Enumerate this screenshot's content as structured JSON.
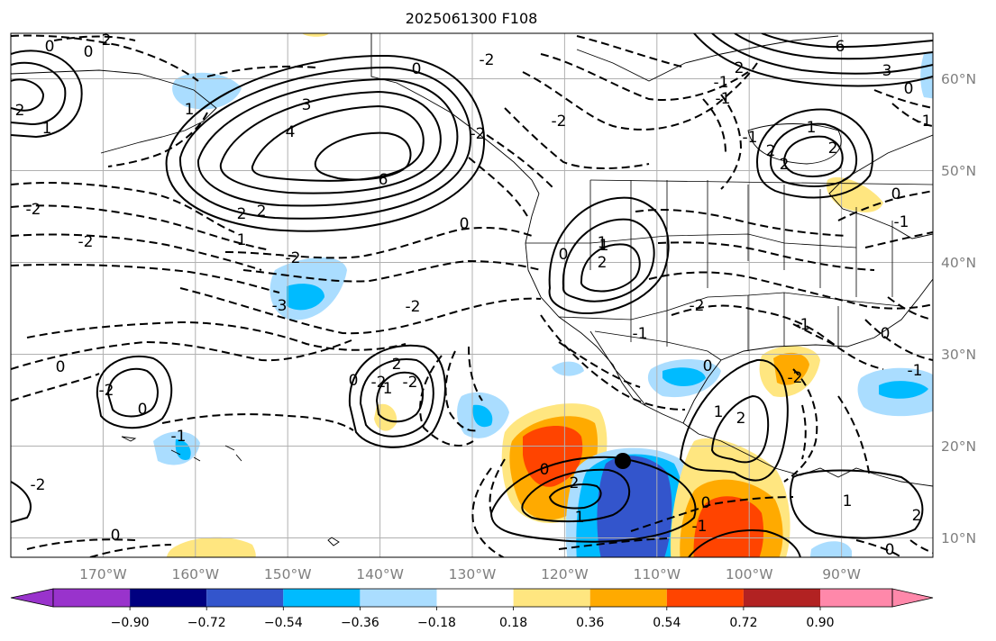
{
  "figure": {
    "title": "2025061300 F108",
    "lon_labels": [
      "170°W",
      "160°W",
      "150°W",
      "140°W",
      "130°W",
      "120°W",
      "110°W",
      "100°W",
      "90°W"
    ],
    "lat_labels": [
      "60°N",
      "50°N",
      "40°N",
      "30°N",
      "20°N",
      "10°N"
    ]
  },
  "colorbar": {
    "ticks": [
      "−0.90",
      "−0.72",
      "−0.54",
      "−0.36",
      "−0.18",
      "0.18",
      "0.36",
      "0.54",
      "0.72",
      "0.90"
    ],
    "colors": [
      "#9933cc",
      "#000080",
      "#3355cc",
      "#00bbff",
      "#aaddff",
      "#ffffff",
      "#ffe680",
      "#ffaa00",
      "#ff4400",
      "#b22222",
      "#ff88aa"
    ]
  },
  "contour_labels": [
    "0",
    "2",
    "1",
    "2",
    "0",
    "1",
    "0",
    "2",
    "3",
    "4",
    "6",
    "-2",
    "-2",
    "1",
    "2",
    "0",
    "1",
    "2",
    "-2",
    "-2",
    "-2",
    "0",
    "-2",
    "-1",
    "-2",
    "-3",
    "-2",
    "0",
    "-2",
    "2",
    "-2",
    "-2",
    "0",
    "-1",
    "0",
    "1",
    "-2",
    "0",
    "0",
    "2",
    "1",
    "0",
    "-1",
    "1",
    "2",
    "0",
    "-2",
    "-1",
    "6",
    "3",
    "2",
    "-1",
    "2",
    "-1",
    "2",
    "-1",
    "0",
    "-1",
    "1",
    "2",
    "0",
    "-1",
    "-1",
    "1",
    "0",
    "2",
    "1",
    "0"
  ]
}
